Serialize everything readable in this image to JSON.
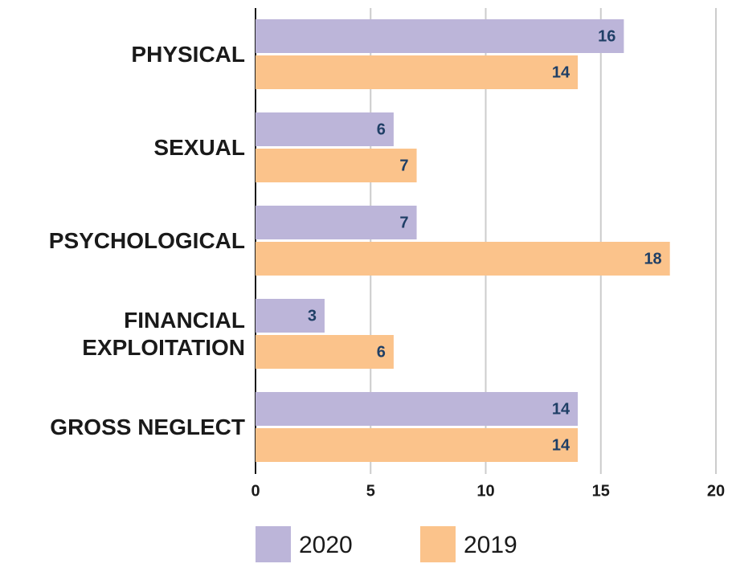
{
  "chart_data": {
    "type": "bar",
    "orientation": "horizontal",
    "categories": [
      "PHYSICAL",
      "SEXUAL",
      "PSYCHOLOGICAL",
      "FINANCIAL EXPLOITATION",
      "GROSS NEGLECT"
    ],
    "series": [
      {
        "name": "2020",
        "color": "#bcb5d9",
        "values": [
          16,
          6,
          7,
          3,
          14
        ]
      },
      {
        "name": "2019",
        "color": "#fbc38b",
        "values": [
          14,
          7,
          18,
          6,
          14
        ]
      }
    ],
    "xlim": [
      0,
      20
    ],
    "xticks": [
      0,
      5,
      10,
      15,
      20
    ],
    "grid": true,
    "legend": "bottom"
  }
}
